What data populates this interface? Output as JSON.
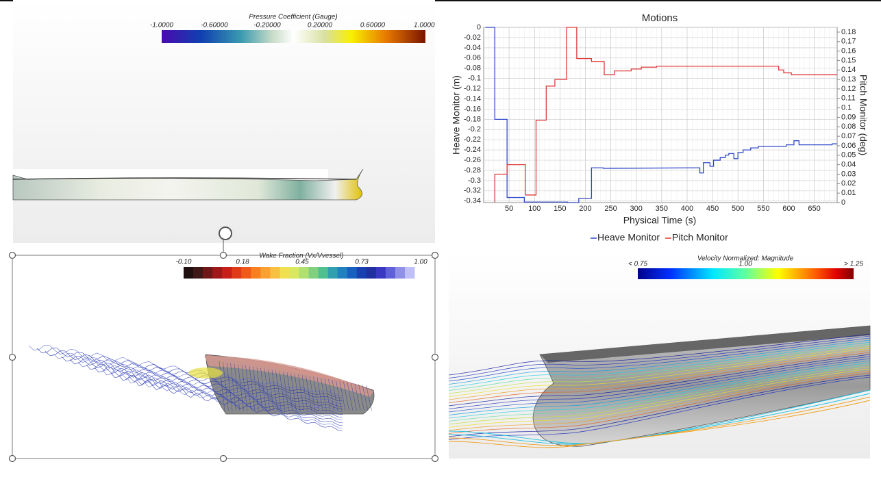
{
  "pressure_panel": {
    "title": "Pressure Coefficient (Gauge)",
    "tick_labels": [
      "-1.0000",
      "-0.60000",
      "-0.20000",
      "0.20000",
      "0.60000",
      "1.0000"
    ]
  },
  "wake_panel": {
    "title": "Wake Fraction (Vx/Vvessel)",
    "tick_labels": [
      "-0.10",
      "0.18",
      "0.45",
      "0.73",
      "1.00"
    ]
  },
  "velocity_panel": {
    "title": "Velocity Normalized: Magnitude",
    "tick_labels": [
      "< 0.75",
      "1.00",
      "> 1.25"
    ]
  },
  "chart_data": {
    "type": "line",
    "title": "Motions",
    "x_label": "Physical Time (s)",
    "y_label": "Heave Monitor (m)",
    "y2_label": "Pitch Monitor (deg)",
    "xlim": [
      0,
      695
    ],
    "xticks": [
      50,
      100,
      150,
      200,
      250,
      300,
      350,
      400,
      450,
      500,
      550,
      600,
      650
    ],
    "ylim": [
      -0.343,
      0
    ],
    "yticks": [
      0,
      -0.02,
      -0.04,
      -0.06,
      -0.08,
      -0.1,
      -0.12,
      -0.14,
      -0.16,
      -0.18,
      -0.2,
      -0.22,
      -0.24,
      -0.26,
      -0.28,
      -0.3,
      -0.32,
      -0.34
    ],
    "y2lim": [
      0,
      0.185
    ],
    "y2ticks": [
      0,
      0.01,
      0.02,
      0.03,
      0.04,
      0.05,
      0.06,
      0.07,
      0.08,
      0.09,
      0.1,
      0.11,
      0.12,
      0.13,
      0.14,
      0.15,
      0.16,
      0.17,
      0.18
    ],
    "grid": true,
    "series": [
      {
        "name": "Heave Monitor",
        "color": "#3048c8",
        "x": [
          3,
          22,
          22,
          46,
          46,
          80,
          80,
          165,
          165,
          187,
          187,
          212,
          212,
          235,
          235,
          415,
          425,
          425,
          432,
          432,
          445,
          445,
          452,
          452,
          465,
          465,
          475,
          475,
          482,
          482,
          492,
          492,
          500,
          500,
          510,
          510,
          525,
          525,
          540,
          540,
          595,
          595,
          610,
          610,
          620,
          620,
          685,
          685,
          695
        ],
        "values": [
          0,
          0,
          -0.18,
          -0.18,
          -0.333,
          -0.333,
          -0.342,
          -0.342,
          -0.343,
          -0.343,
          -0.335,
          -0.335,
          -0.275,
          -0.275,
          -0.276,
          -0.275,
          -0.275,
          -0.285,
          -0.285,
          -0.265,
          -0.265,
          -0.272,
          -0.272,
          -0.26,
          -0.26,
          -0.255,
          -0.255,
          -0.25,
          -0.25,
          -0.247,
          -0.247,
          -0.257,
          -0.257,
          -0.245,
          -0.245,
          -0.24,
          -0.24,
          -0.236,
          -0.236,
          -0.233,
          -0.233,
          -0.23,
          -0.23,
          -0.222,
          -0.222,
          -0.23,
          -0.23,
          -0.228,
          -0.228
        ]
      },
      {
        "name": "Pitch Monitor",
        "color": "#e03a3a",
        "axis": "y2",
        "x": [
          22,
          22,
          46,
          46,
          82,
          82,
          103,
          103,
          123,
          123,
          140,
          140,
          163,
          163,
          183,
          183,
          212,
          212,
          237,
          237,
          257,
          257,
          290,
          290,
          310,
          310,
          340,
          340,
          580,
          580,
          590,
          590,
          605,
          605,
          695
        ],
        "values": [
          0,
          0.03,
          0.03,
          0.04,
          0.04,
          0.008,
          0.008,
          0.087,
          0.087,
          0.123,
          0.123,
          0.13,
          0.13,
          0.185,
          0.185,
          0.152,
          0.152,
          0.149,
          0.149,
          0.135,
          0.135,
          0.139,
          0.139,
          0.141,
          0.141,
          0.143,
          0.143,
          0.144,
          0.144,
          0.14,
          0.14,
          0.137,
          0.137,
          0.135,
          0.135
        ]
      }
    ]
  }
}
